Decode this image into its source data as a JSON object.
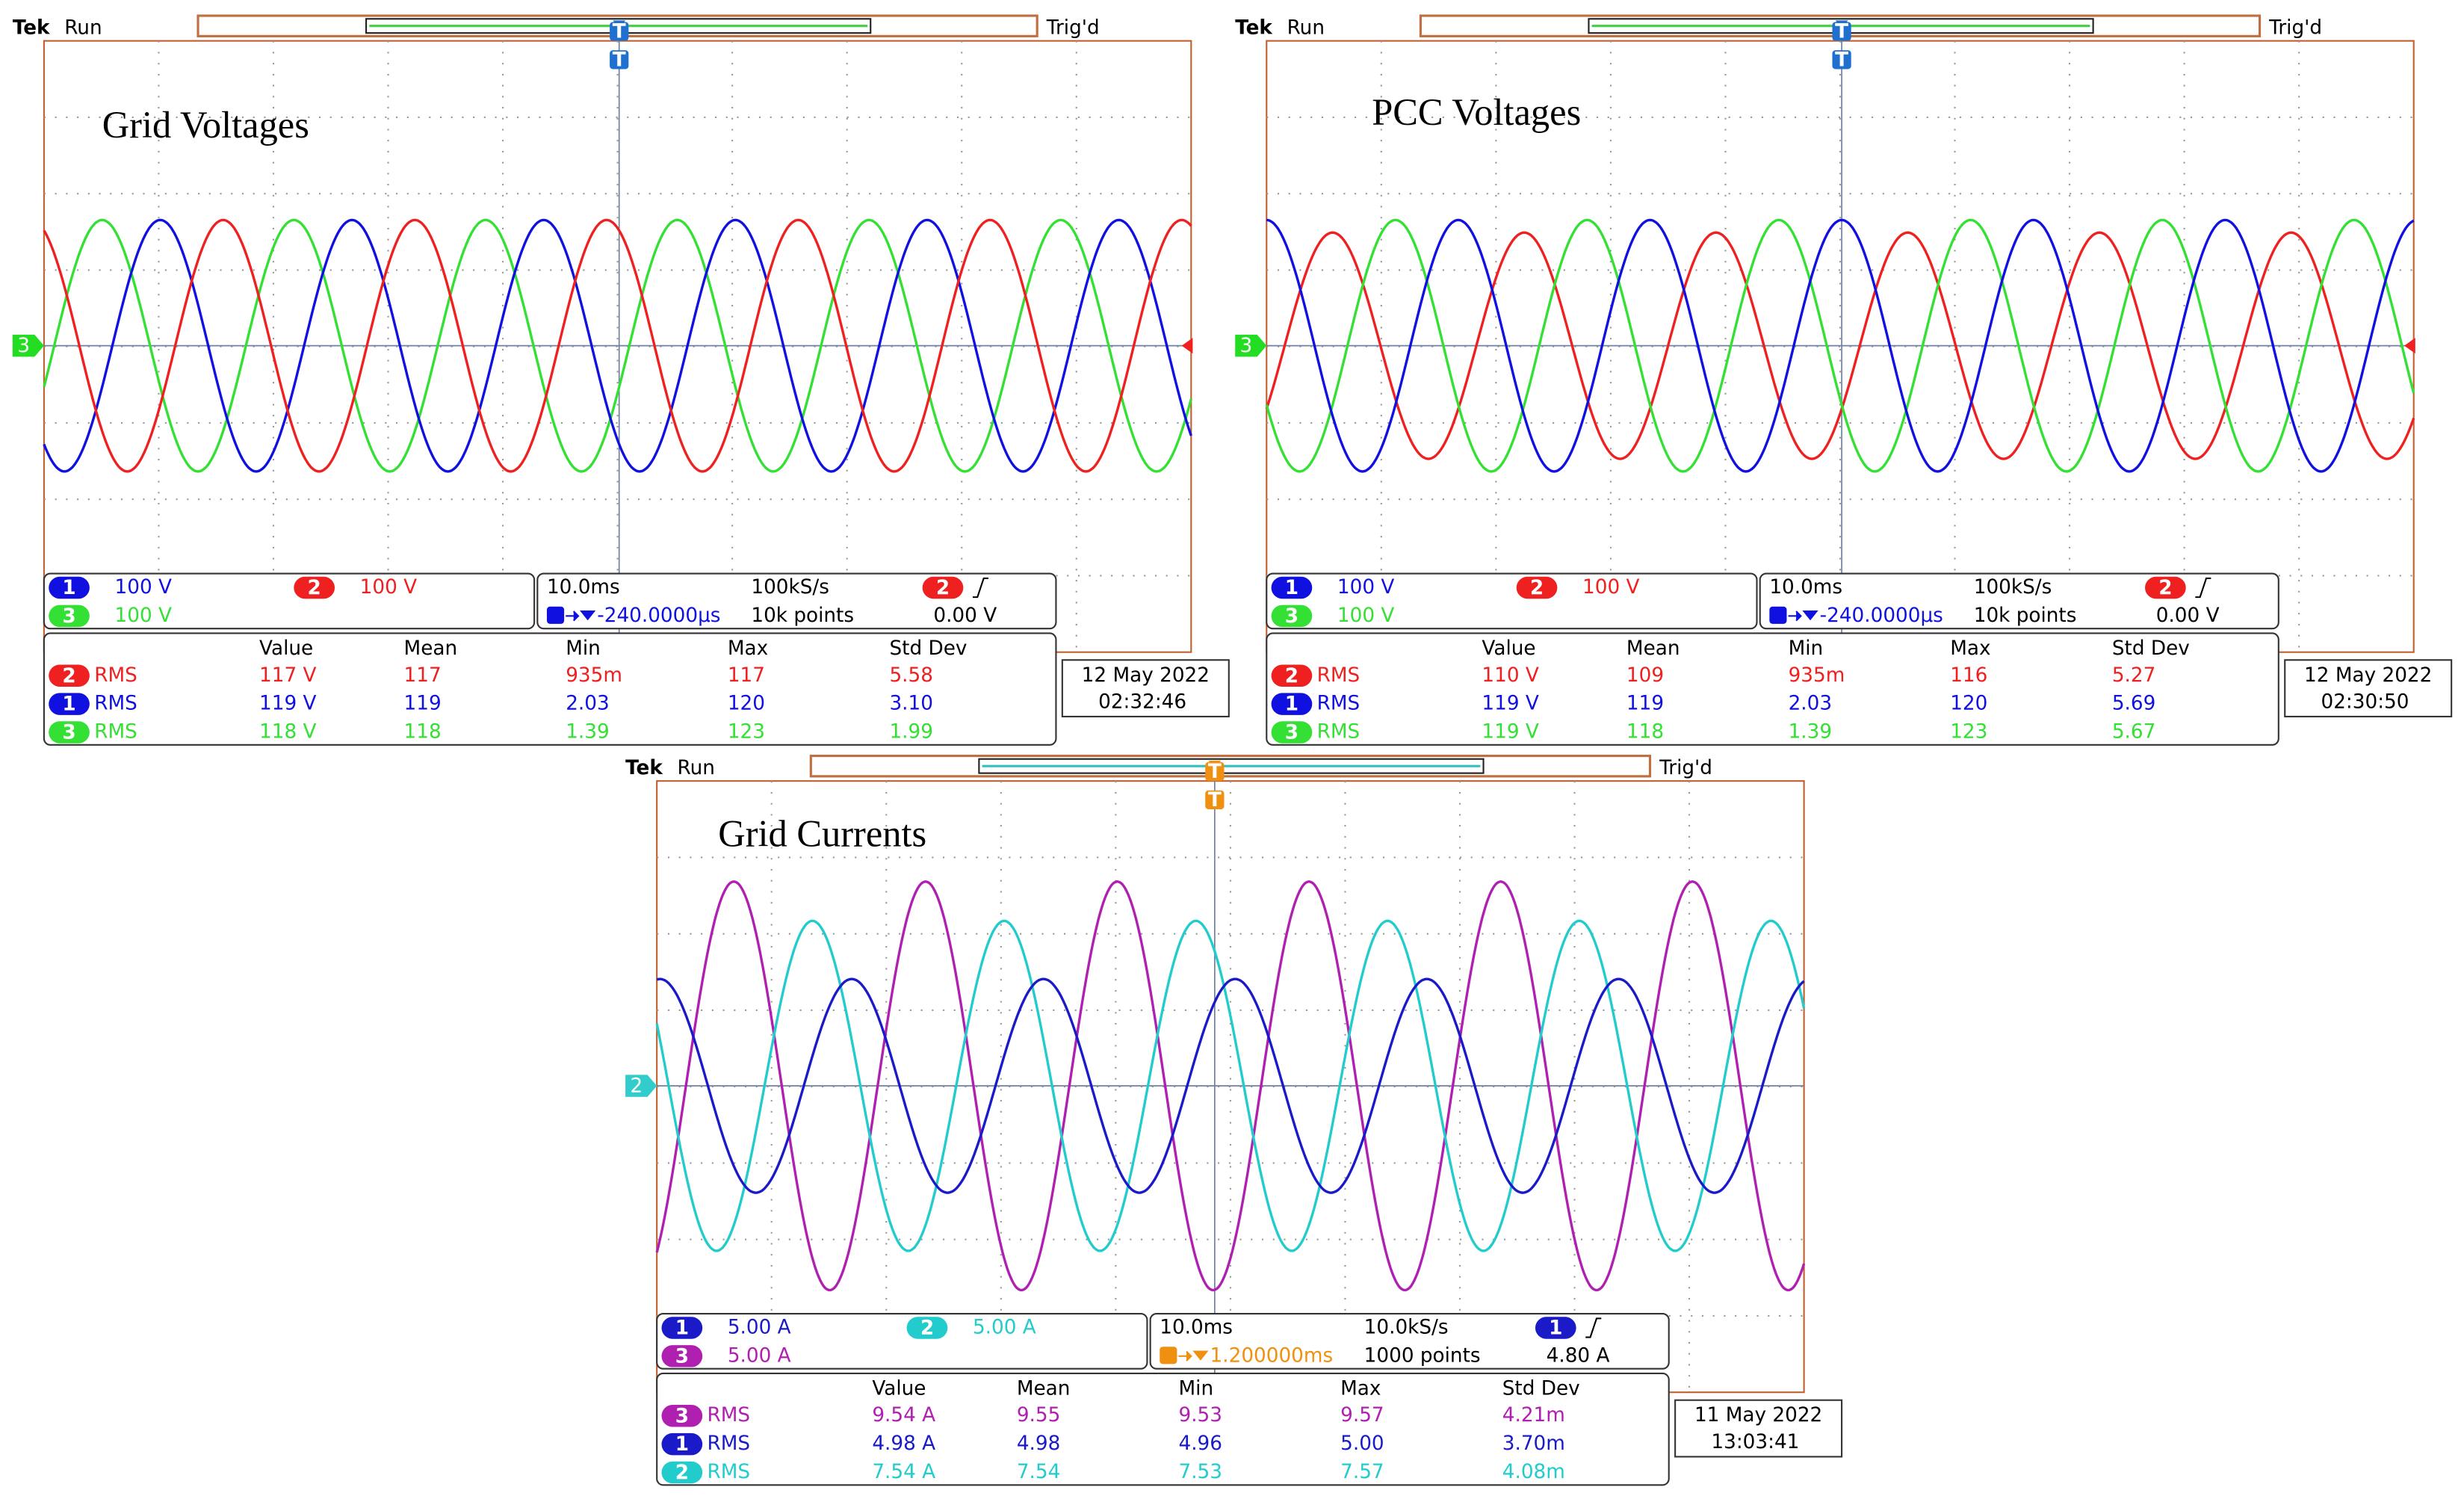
{
  "scopes": [
    {
      "brand": "Tek",
      "status": "Run",
      "trigger_status": "Trig'd",
      "title": "Grid Voltages",
      "trigger_marker": "T",
      "ground_marker": {
        "label": "3",
        "color": "#22dd22"
      },
      "channels": [
        {
          "badge": "1",
          "scale": "100 V",
          "color": "#1010e0"
        },
        {
          "badge": "2",
          "scale": "100 V",
          "color": "#ee2020"
        },
        {
          "badge": "3",
          "scale": "100 V",
          "color": "#33e033"
        }
      ],
      "timebase": {
        "time_div": "10.0ms",
        "sample_rate": "100kS/s",
        "delay": "-240.0000µs",
        "delay_color": "#1010e0",
        "record": "10k points",
        "trigger_channel": "2",
        "trigger_level": "0.00 V"
      },
      "measurements": {
        "headers": [
          "Value",
          "Mean",
          "Min",
          "Max",
          "Std Dev"
        ],
        "rows": [
          {
            "channel": "2",
            "type": "RMS",
            "cells": [
              "117 V",
              "117",
              "935m",
              "117",
              "5.58"
            ]
          },
          {
            "channel": "1",
            "type": "RMS",
            "cells": [
              "119 V",
              "119",
              "2.03",
              "120",
              "3.10"
            ]
          },
          {
            "channel": "3",
            "type": "RMS",
            "cells": [
              "118 V",
              "118",
              "1.39",
              "123",
              "1.99"
            ]
          }
        ]
      },
      "date": "12 May 2022",
      "time": "02:32:46"
    },
    {
      "brand": "Tek",
      "status": "Run",
      "trigger_status": "Trig'd",
      "title": "PCC Voltages",
      "trigger_marker": "T",
      "ground_marker": {
        "label": "3",
        "color": "#22dd22"
      },
      "channels": [
        {
          "badge": "1",
          "scale": "100 V",
          "color": "#1010e0"
        },
        {
          "badge": "2",
          "scale": "100 V",
          "color": "#ee2020"
        },
        {
          "badge": "3",
          "scale": "100 V",
          "color": "#33e033"
        }
      ],
      "timebase": {
        "time_div": "10.0ms",
        "sample_rate": "100kS/s",
        "delay": "-240.0000µs",
        "delay_color": "#1010e0",
        "record": "10k points",
        "trigger_channel": "2",
        "trigger_level": "0.00 V"
      },
      "measurements": {
        "headers": [
          "Value",
          "Mean",
          "Min",
          "Max",
          "Std Dev"
        ],
        "rows": [
          {
            "channel": "2",
            "type": "RMS",
            "cells": [
              "110 V",
              "109",
              "935m",
              "116",
              "5.27"
            ]
          },
          {
            "channel": "1",
            "type": "RMS",
            "cells": [
              "119 V",
              "119",
              "2.03",
              "120",
              "5.69"
            ]
          },
          {
            "channel": "3",
            "type": "RMS",
            "cells": [
              "119 V",
              "118",
              "1.39",
              "123",
              "5.67"
            ]
          }
        ]
      },
      "date": "12 May 2022",
      "time": "02:30:50"
    },
    {
      "brand": "Tek",
      "status": "Run",
      "trigger_status": "Trig'd",
      "title": "Grid Currents",
      "trigger_marker": "T",
      "ground_marker": {
        "label": "2",
        "color": "#33cccc"
      },
      "channels": [
        {
          "badge": "1",
          "scale": "5.00 A",
          "color": "#1a1ac8"
        },
        {
          "badge": "2",
          "scale": "5.00 A",
          "color": "#22cccc"
        },
        {
          "badge": "3",
          "scale": "5.00 A",
          "color": "#b020b0"
        }
      ],
      "timebase": {
        "time_div": "10.0ms",
        "sample_rate": "10.0kS/s",
        "delay": "1.200000ms",
        "delay_color": "#f09010",
        "record": "1000 points",
        "trigger_channel": "1",
        "trigger_level": "4.80 A"
      },
      "measurements": {
        "headers": [
          "Value",
          "Mean",
          "Min",
          "Max",
          "Std Dev"
        ],
        "rows": [
          {
            "channel": "3",
            "type": "RMS",
            "cells": [
              "9.54 A",
              "9.55",
              "9.53",
              "9.57",
              "4.21m"
            ]
          },
          {
            "channel": "1",
            "type": "RMS",
            "cells": [
              "4.98 A",
              "4.98",
              "4.96",
              "5.00",
              "3.70m"
            ]
          },
          {
            "channel": "2",
            "type": "RMS",
            "cells": [
              "7.54 A",
              "7.54",
              "7.53",
              "7.57",
              "4.08m"
            ]
          }
        ]
      },
      "date": "11 May 2022",
      "time": "13:03:41"
    }
  ]
}
